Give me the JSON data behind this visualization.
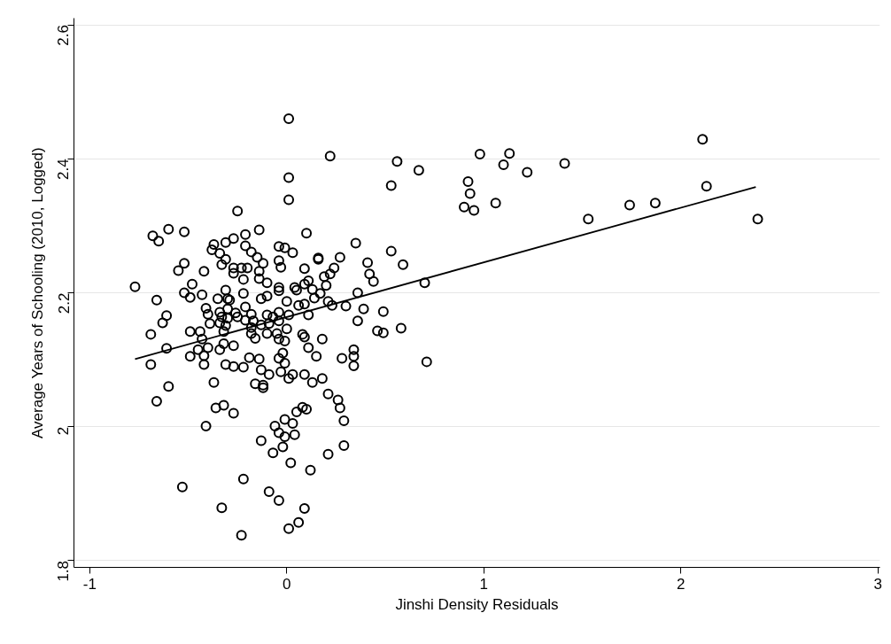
{
  "chart_data": {
    "type": "scatter",
    "xlabel": "Jinshi Density Residuals",
    "ylabel": "Average Years of Schooling (2010, Logged)",
    "xlim": [
      -1.08,
      3.01
    ],
    "ylim": [
      1.79,
      2.61
    ],
    "xticks": [
      -1,
      0,
      1,
      2,
      3
    ],
    "yticks": [
      1.8,
      2,
      2.2,
      2.4,
      2.6
    ],
    "grid": "y",
    "series": [
      {
        "marker": "circle",
        "color": "#000000",
        "x": [
          0.56,
          0.67,
          0.98,
          1.13,
          1.1,
          1.22,
          1.41,
          0.92,
          0.93,
          0.9,
          0.95,
          1.06,
          1.53,
          1.74,
          1.87,
          2.11,
          2.13,
          2.39,
          0.53,
          0.53,
          0.59,
          0.7,
          0.58,
          0.71,
          0.01,
          0.22,
          0.01,
          0.01,
          -0.25,
          -0.14,
          -0.21,
          -0.27,
          -0.21,
          0.1,
          0.35,
          -0.04,
          -0.01,
          0.03,
          -0.18,
          -0.15,
          0.16,
          0.27,
          -0.68,
          -0.65,
          -0.6,
          -0.52,
          -0.37,
          -0.38,
          -0.31,
          -0.34,
          -0.31,
          -0.33,
          -0.12,
          -0.04,
          -0.03,
          0.16,
          0.09,
          -0.52,
          -0.55,
          -0.42,
          -0.27,
          -0.27,
          -0.23,
          -0.2,
          -0.14,
          -0.14,
          -0.22,
          -0.1,
          -0.77,
          -0.48,
          -0.52,
          -0.43,
          -0.49,
          -0.31,
          -0.22,
          -0.04,
          -0.04,
          0.04,
          0.05,
          0.09,
          0.11,
          0.13,
          0.17,
          0.2,
          0.19,
          0.22,
          0.24,
          -0.66,
          -0.35,
          -0.3,
          -0.29,
          -0.13,
          -0.1,
          0.0,
          0.06,
          0.09,
          0.14,
          0.21,
          0.23,
          -0.61,
          -0.63,
          -0.69,
          -0.41,
          -0.4,
          -0.34,
          -0.33,
          -0.3,
          -0.3,
          -0.26,
          -0.25,
          -0.21,
          -0.21,
          -0.18,
          -0.17,
          -0.1,
          -0.07,
          -0.04,
          0.01,
          0.11,
          -0.39,
          -0.34,
          -0.31,
          -0.18,
          -0.13,
          -0.09,
          -0.04,
          -0.49,
          -0.44,
          -0.32,
          0.0,
          -0.18,
          -0.16,
          -0.1,
          -0.05,
          -0.04,
          -0.01,
          0.08,
          0.09,
          0.18,
          -0.61,
          -0.43,
          -0.45,
          -0.4,
          -0.34,
          -0.32,
          -0.27,
          -0.49,
          -0.42,
          -0.42,
          -0.69,
          -0.31,
          -0.27,
          -0.22,
          -0.19,
          -0.14,
          -0.37,
          -0.13,
          -0.09,
          -0.04,
          -0.02,
          -0.01,
          -0.03,
          0.03,
          0.09,
          0.13,
          0.18,
          0.15,
          0.11,
          -0.6,
          -0.16,
          -0.12,
          -0.66,
          -0.36,
          -0.32,
          -0.27,
          -0.41,
          -0.12,
          0.01,
          0.21,
          0.26,
          0.27,
          0.29,
          0.29,
          0.21,
          0.12,
          0.05,
          0.08,
          0.1,
          -0.01,
          0.03,
          -0.06,
          -0.04,
          -0.01,
          0.04,
          -0.13,
          -0.02,
          -0.07,
          0.02,
          -0.22,
          -0.53,
          -0.09,
          -0.04,
          0.09,
          -0.33,
          0.06,
          0.01,
          -0.23,
          0.41,
          0.42,
          0.44,
          0.36,
          0.3,
          0.39,
          0.49,
          0.36,
          0.46,
          0.49,
          0.34,
          0.34,
          0.28,
          0.34
        ],
        "values": [
          2.396,
          2.383,
          2.407,
          2.408,
          2.391,
          2.38,
          2.393,
          2.366,
          2.348,
          2.328,
          2.323,
          2.334,
          2.31,
          2.331,
          2.334,
          2.429,
          2.359,
          2.31,
          2.36,
          2.262,
          2.242,
          2.215,
          2.147,
          2.097,
          2.46,
          2.404,
          2.372,
          2.339,
          2.322,
          2.294,
          2.287,
          2.281,
          2.27,
          2.289,
          2.274,
          2.269,
          2.267,
          2.26,
          2.261,
          2.253,
          2.25,
          2.253,
          2.285,
          2.277,
          2.295,
          2.291,
          2.272,
          2.264,
          2.275,
          2.259,
          2.25,
          2.242,
          2.244,
          2.248,
          2.238,
          2.252,
          2.236,
          2.244,
          2.233,
          2.232,
          2.237,
          2.229,
          2.237,
          2.237,
          2.232,
          2.221,
          2.22,
          2.215,
          2.209,
          2.213,
          2.2,
          2.197,
          2.193,
          2.204,
          2.199,
          2.208,
          2.203,
          2.208,
          2.204,
          2.213,
          2.218,
          2.205,
          2.199,
          2.211,
          2.224,
          2.228,
          2.237,
          2.189,
          2.191,
          2.191,
          2.189,
          2.191,
          2.195,
          2.187,
          2.181,
          2.183,
          2.192,
          2.187,
          2.181,
          2.166,
          2.155,
          2.138,
          2.177,
          2.168,
          2.171,
          2.164,
          2.176,
          2.162,
          2.17,
          2.164,
          2.179,
          2.159,
          2.168,
          2.158,
          2.167,
          2.164,
          2.171,
          2.167,
          2.167,
          2.154,
          2.155,
          2.151,
          2.148,
          2.152,
          2.154,
          2.158,
          2.142,
          2.142,
          2.142,
          2.146,
          2.139,
          2.132,
          2.139,
          2.139,
          2.131,
          2.128,
          2.138,
          2.134,
          2.131,
          2.117,
          2.131,
          2.115,
          2.118,
          2.115,
          2.124,
          2.121,
          2.105,
          2.106,
          2.093,
          2.093,
          2.093,
          2.09,
          2.089,
          2.103,
          2.101,
          2.066,
          2.085,
          2.078,
          2.102,
          2.11,
          2.095,
          2.082,
          2.078,
          2.078,
          2.066,
          2.072,
          2.105,
          2.118,
          2.06,
          2.064,
          2.062,
          2.038,
          2.028,
          2.032,
          2.02,
          2.001,
          2.058,
          2.072,
          2.049,
          2.04,
          2.028,
          2.009,
          1.972,
          1.959,
          1.935,
          2.022,
          2.029,
          2.026,
          2.011,
          2.005,
          2.001,
          1.991,
          1.985,
          1.988,
          1.979,
          1.97,
          1.961,
          1.946,
          1.922,
          1.91,
          1.903,
          1.89,
          1.878,
          1.879,
          1.857,
          1.848,
          1.838,
          2.245,
          2.228,
          2.217,
          2.2,
          2.18,
          2.176,
          2.172,
          2.158,
          2.143,
          2.14,
          2.115,
          2.105,
          2.102,
          2.091
        ]
      },
      {
        "type": "line",
        "color": "#000000",
        "x": [
          -0.77,
          2.38
        ],
        "values": [
          2.101,
          2.358
        ]
      }
    ]
  }
}
